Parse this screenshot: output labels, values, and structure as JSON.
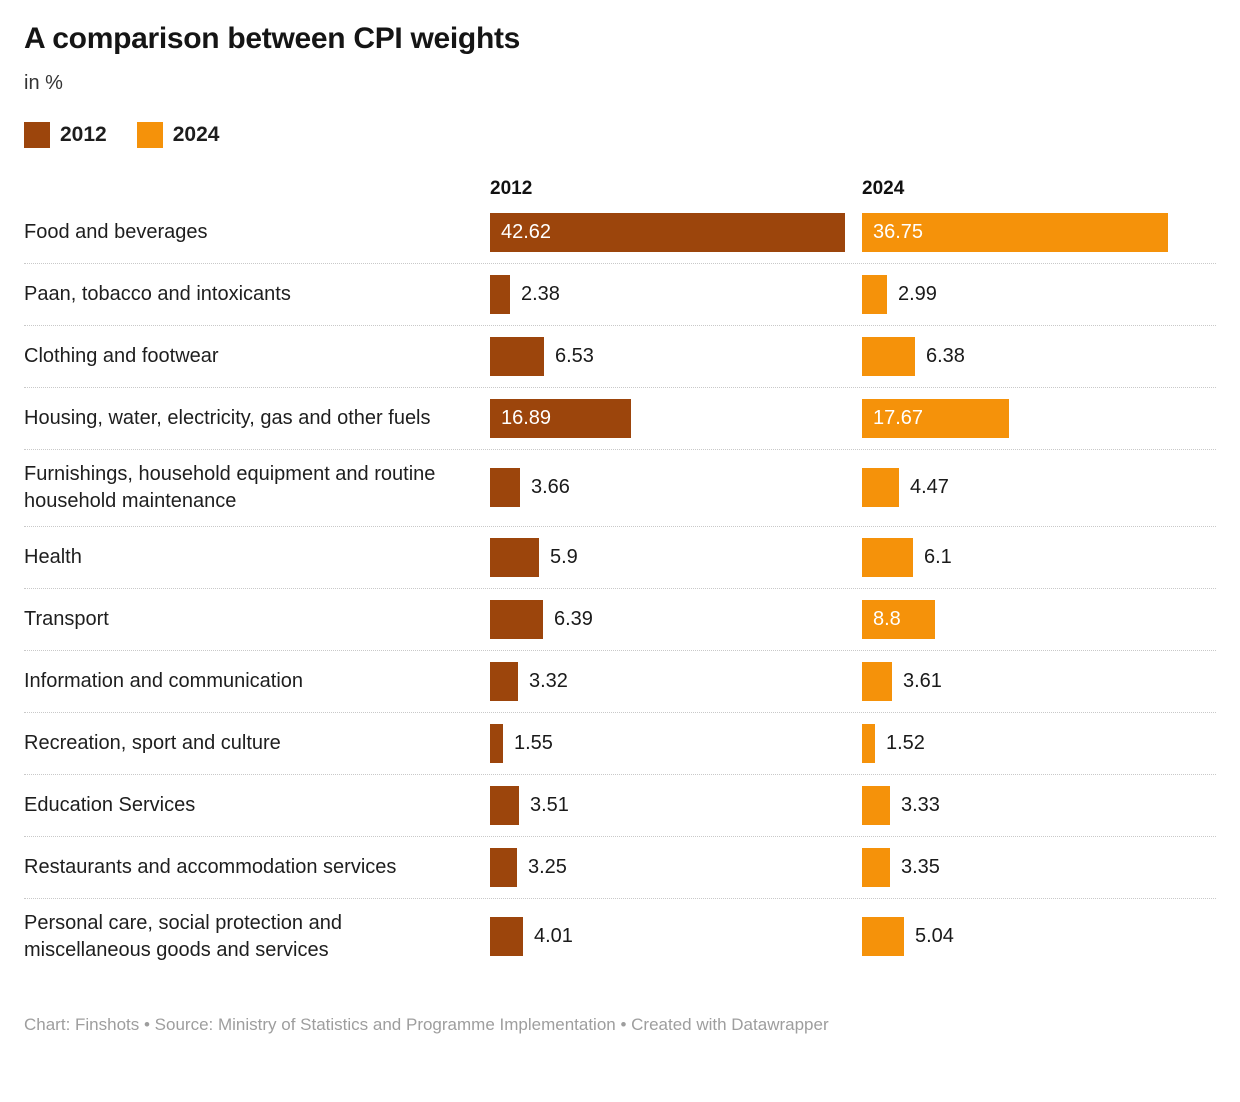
{
  "header": {
    "title": "A comparison between CPI weights",
    "subtitle": "in %"
  },
  "legend": {
    "items": [
      {
        "label": "2012",
        "color": "#9c450c"
      },
      {
        "label": "2024",
        "color": "#f5920a"
      }
    ]
  },
  "column_headers": {
    "col1": "2012",
    "col2": "2024"
  },
  "chart_data": {
    "type": "bar",
    "orientation": "horizontal",
    "title": "A comparison between CPI weights",
    "subtitle": "in %",
    "xlabel": "",
    "ylabel": "",
    "xlim": [
      0,
      42.62
    ],
    "grid": false,
    "value_labels": true,
    "legend_position": "top-left",
    "categories": [
      "Food and beverages",
      "Paan, tobacco and intoxicants",
      "Clothing and footwear",
      "Housing, water, electricity, gas and other fuels",
      "Furnishings, household equipment and routine household maintenance",
      "Health",
      "Transport",
      "Information and communication",
      "Recreation, sport and culture",
      "Education Services",
      "Restaurants and accommodation services",
      "Personal care, social protection and miscellaneous goods and services"
    ],
    "series": [
      {
        "name": "2012",
        "color": "#9c450c",
        "values": [
          42.62,
          2.38,
          6.53,
          16.89,
          3.66,
          5.9,
          6.39,
          3.32,
          1.55,
          3.51,
          3.25,
          4.01
        ]
      },
      {
        "name": "2024",
        "color": "#f5920a",
        "values": [
          36.75,
          2.99,
          6.38,
          17.67,
          4.47,
          6.1,
          8.8,
          3.61,
          1.52,
          3.33,
          3.35,
          5.04
        ]
      }
    ]
  },
  "footer": {
    "credit": "Chart: Finshots • Source: Ministry of Statistics and Programme Implementation • Created with Datawrapper"
  }
}
